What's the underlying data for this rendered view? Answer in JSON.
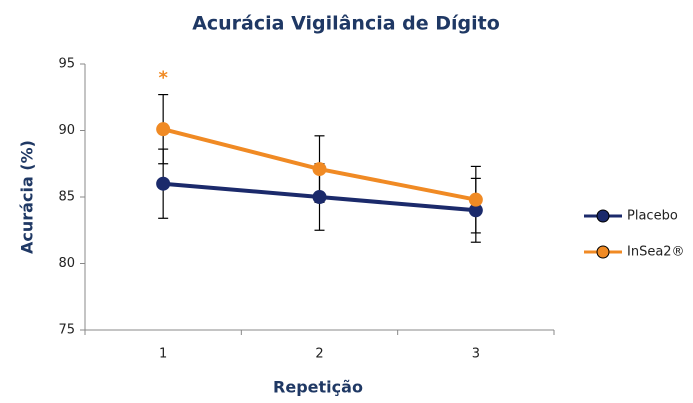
{
  "chart_data": {
    "type": "line",
    "title": "Acurácia Vigilância de Dígito",
    "xlabel": "Repetição",
    "ylabel": "Acurácia (%)",
    "categories": [
      "1",
      "2",
      "3"
    ],
    "series": [
      {
        "name": "Placebo",
        "color": "#1b2a6b",
        "values": [
          86,
          85,
          84
        ],
        "errors": [
          2.6,
          2.5,
          2.4
        ]
      },
      {
        "name": "InSea2®",
        "color": "#f08a24",
        "values": [
          90.1,
          87.1,
          84.8
        ],
        "errors": [
          2.6,
          2.5,
          2.5
        ]
      }
    ],
    "annotation": "*",
    "ylim": [
      75,
      95
    ],
    "yticks": [
      75,
      80,
      85,
      90,
      95
    ],
    "grid": false,
    "legend": "right"
  }
}
